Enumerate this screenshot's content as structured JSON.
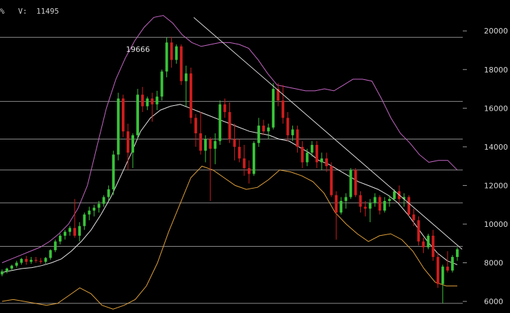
{
  "header": {
    "left_mark": "%",
    "volume_label": "V:",
    "volume_value": "11495"
  },
  "chart_data": {
    "type": "candlestick",
    "ylim": [
      5400,
      21600
    ],
    "y_ticks": [
      6000,
      8000,
      10000,
      12000,
      14000,
      16000,
      18000,
      20000
    ],
    "y_tick_labels": [
      "6000",
      "8000",
      "10000",
      "12000",
      "14000",
      "16000",
      "18000",
      "20000"
    ],
    "horizontal_levels": [
      19666,
      16350,
      14400,
      12800,
      11100,
      8850,
      5900
    ],
    "annotation": {
      "text": "19666",
      "value": 19666
    },
    "colors": {
      "up": "#39c439",
      "down": "#d11d1d",
      "upper_band": "#c768c7",
      "lower_band": "#e3a33b",
      "middle_band": "#eaeaea",
      "trendline": "#dddddd",
      "level": "#8c8c8c",
      "text": "#d8d8d8"
    },
    "candles": [
      [
        7400,
        7650,
        7300,
        7550
      ],
      [
        7550,
        7750,
        7450,
        7700
      ],
      [
        7700,
        7900,
        7600,
        7850
      ],
      [
        7850,
        8100,
        7750,
        8000
      ],
      [
        8000,
        8250,
        7900,
        8200
      ],
      [
        8200,
        8350,
        7900,
        8050
      ],
      [
        8050,
        8300,
        7950,
        8150
      ],
      [
        8150,
        8300,
        8000,
        8100
      ],
      [
        8100,
        8250,
        7950,
        8050
      ],
      [
        8050,
        8300,
        7950,
        8250
      ],
      [
        8250,
        8700,
        8150,
        8650
      ],
      [
        8650,
        9200,
        8550,
        9100
      ],
      [
        9100,
        9500,
        8950,
        9400
      ],
      [
        9400,
        9700,
        9200,
        9600
      ],
      [
        9600,
        9900,
        9400,
        9800
      ],
      [
        9800,
        11300,
        9300,
        9400
      ],
      [
        9400,
        10100,
        9100,
        9900
      ],
      [
        9900,
        10600,
        9700,
        10500
      ],
      [
        10500,
        10900,
        10200,
        10700
      ],
      [
        10700,
        11000,
        10400,
        10850
      ],
      [
        10850,
        11200,
        10600,
        11050
      ],
      [
        11050,
        11500,
        10900,
        11400
      ],
      [
        11400,
        12000,
        11200,
        11800
      ],
      [
        11800,
        13800,
        11500,
        13600
      ],
      [
        13600,
        16800,
        13300,
        16500
      ],
      [
        16500,
        16700,
        14500,
        14800
      ],
      [
        14800,
        15200,
        12800,
        13700
      ],
      [
        13700,
        14700,
        12900,
        14600
      ],
      [
        14600,
        17000,
        14400,
        16700
      ],
      [
        16700,
        17100,
        15800,
        16100
      ],
      [
        16100,
        16600,
        15900,
        16500
      ],
      [
        16500,
        16800,
        15300,
        16200
      ],
      [
        16200,
        16900,
        15900,
        16600
      ],
      [
        16600,
        18000,
        16400,
        17900
      ],
      [
        17900,
        19666,
        17600,
        19400
      ],
      [
        19400,
        19700,
        18100,
        18500
      ],
      [
        18500,
        19300,
        18300,
        19200
      ],
      [
        19200,
        19300,
        17200,
        17400
      ],
      [
        17400,
        18200,
        16100,
        17800
      ],
      [
        17800,
        18100,
        15200,
        15500
      ],
      [
        15500,
        15700,
        14000,
        14700
      ],
      [
        14700,
        15800,
        13600,
        13800
      ],
      [
        13800,
        14600,
        13200,
        14400
      ],
      [
        14400,
        14500,
        11200,
        13900
      ],
      [
        13900,
        14700,
        13100,
        14300
      ],
      [
        14300,
        16400,
        14100,
        16200
      ],
      [
        16200,
        16500,
        15500,
        15800
      ],
      [
        15800,
        16300,
        14200,
        14400
      ],
      [
        14400,
        15200,
        13300,
        14000
      ],
      [
        14000,
        14400,
        13200,
        13400
      ],
      [
        13400,
        14100,
        12500,
        12900
      ],
      [
        12900,
        13300,
        12100,
        12600
      ],
      [
        12600,
        14300,
        12500,
        14200
      ],
      [
        14200,
        15500,
        14000,
        15100
      ],
      [
        15100,
        15400,
        14600,
        14800
      ],
      [
        14800,
        15200,
        14400,
        15000
      ],
      [
        15000,
        17300,
        14900,
        17000
      ],
      [
        17000,
        17300,
        16100,
        16400
      ],
      [
        16400,
        17200,
        15200,
        15500
      ],
      [
        15500,
        15800,
        14300,
        14600
      ],
      [
        14600,
        15100,
        14300,
        14900
      ],
      [
        14900,
        15100,
        13700,
        14000
      ],
      [
        14000,
        14300,
        12900,
        13200
      ],
      [
        13200,
        13900,
        13000,
        13700
      ],
      [
        13700,
        14300,
        13500,
        14100
      ],
      [
        14100,
        14300,
        12900,
        13200
      ],
      [
        13200,
        13700,
        12800,
        13400
      ],
      [
        13400,
        13700,
        12700,
        13000
      ],
      [
        13000,
        13200,
        11400,
        11500
      ],
      [
        11500,
        11700,
        9200,
        10600
      ],
      [
        10600,
        11400,
        10500,
        11200
      ],
      [
        11200,
        11600,
        10800,
        11400
      ],
      [
        11400,
        12900,
        11300,
        12800
      ],
      [
        12800,
        12900,
        11400,
        11500
      ],
      [
        11500,
        11700,
        10600,
        10900
      ],
      [
        10900,
        11200,
        10400,
        10800
      ],
      [
        10800,
        11300,
        10100,
        11100
      ],
      [
        11100,
        11600,
        10900,
        11400
      ],
      [
        11400,
        11500,
        10500,
        10700
      ],
      [
        10700,
        11400,
        10600,
        11200
      ],
      [
        11200,
        11500,
        10900,
        11300
      ],
      [
        11300,
        11800,
        11200,
        11700
      ],
      [
        11700,
        12000,
        11100,
        11300
      ],
      [
        11300,
        11600,
        10900,
        11400
      ],
      [
        11400,
        11500,
        10400,
        10500
      ],
      [
        10500,
        10800,
        9900,
        10200
      ],
      [
        10200,
        10400,
        8900,
        9100
      ],
      [
        9100,
        9300,
        8500,
        8800
      ],
      [
        8800,
        9500,
        8700,
        9400
      ],
      [
        9400,
        9700,
        8100,
        8300
      ],
      [
        8300,
        8500,
        6700,
        6900
      ],
      [
        6900,
        7900,
        5900,
        7800
      ],
      [
        7800,
        8600,
        7500,
        7600
      ],
      [
        7600,
        8400,
        7500,
        8300
      ],
      [
        8300,
        8800,
        8100,
        8700
      ]
    ],
    "upper_band": [
      8000,
      8200,
      8400,
      8600,
      8800,
      9100,
      9500,
      10000,
      10800,
      12000,
      14000,
      16000,
      17500,
      18600,
      19500,
      20200,
      20700,
      20800,
      20400,
      19800,
      19400,
      19200,
      19300,
      19400,
      19400,
      19300,
      19100,
      18500,
      17800,
      17200,
      17100,
      17000,
      16900,
      16900,
      17000,
      16900,
      17200,
      17500,
      17500,
      17400,
      16500,
      15500,
      14700,
      14200,
      13600,
      13200,
      13300,
      13300,
      12800
    ],
    "middle_band": [
      7500,
      7600,
      7700,
      7750,
      7850,
      8000,
      8200,
      8600,
      9100,
      9700,
      10500,
      11400,
      12500,
      13600,
      14800,
      15500,
      15900,
      16100,
      16200,
      16000,
      15800,
      15600,
      15400,
      15200,
      15000,
      14800,
      14700,
      14600,
      14400,
      14300,
      14000,
      13700,
      13300,
      13100,
      12800,
      12500,
      12200,
      12000,
      11800,
      11500,
      11100,
      10500,
      9800,
      9100,
      8500,
      8100,
      7900
    ],
    "lower_band": [
      6000,
      6100,
      6000,
      5900,
      5800,
      5900,
      6300,
      6700,
      6400,
      5800,
      5600,
      5800,
      6100,
      6800,
      8000,
      9600,
      11000,
      12400,
      13000,
      12800,
      12400,
      12000,
      11800,
      11900,
      12300,
      12800,
      12700,
      12500,
      12200,
      11600,
      10600,
      10000,
      9500,
      9100,
      9400,
      9500,
      9200,
      8600,
      7700,
      7000,
      6800,
      6800
    ],
    "trendline": {
      "from": [
        0,
        20700
      ],
      "to": [
        1,
        8700
      ]
    }
  }
}
